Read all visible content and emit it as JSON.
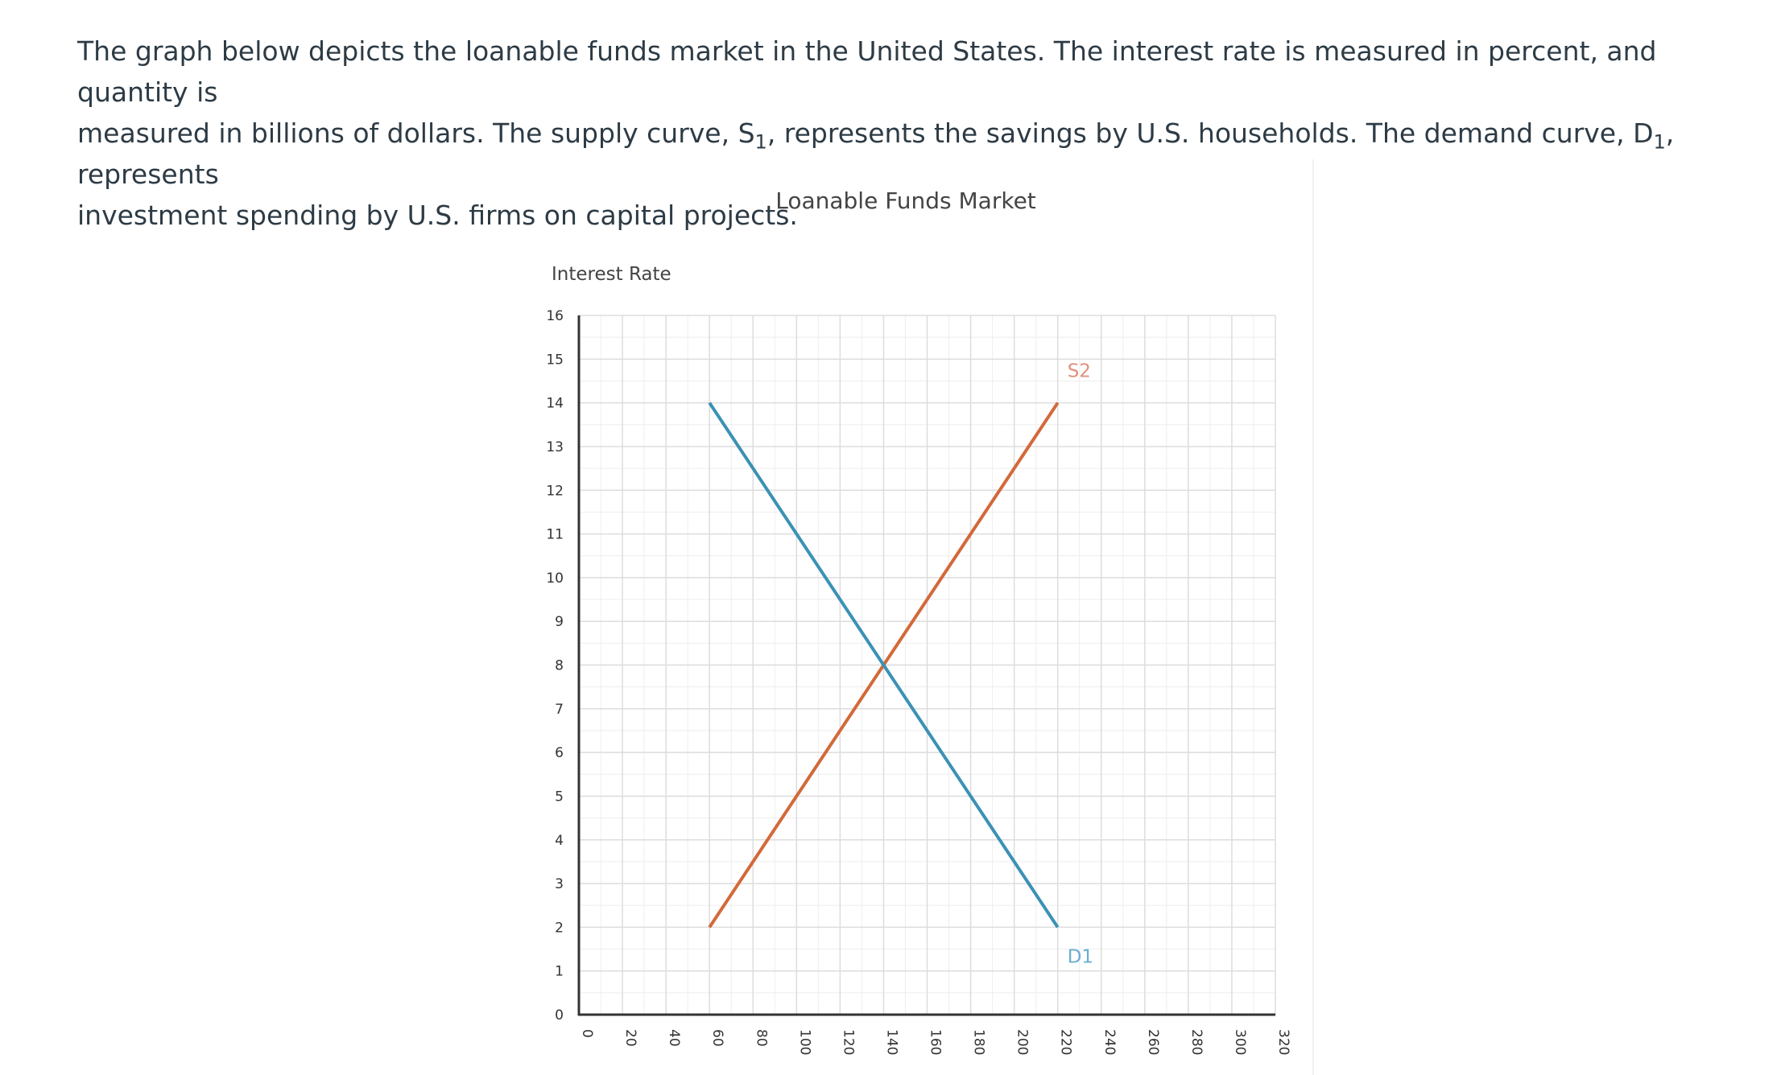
{
  "question": {
    "line1": "The graph below depicts the loanable funds market in the United States. The interest rate is measured in percent, and quantity is",
    "line2a": "measured in billions of dollars. The supply curve, S",
    "line2b": "1",
    "line2c": ", represents the savings by U.S. households. The demand curve, D",
    "line2d": "1",
    "line2e": ", represents",
    "line3": "investment spending by U.S. firms on capital projects."
  },
  "chart_data": {
    "type": "line",
    "title": "Loanable Funds Market",
    "ylabel": "Interest Rate",
    "xlabel": "",
    "xlim": [
      0,
      320
    ],
    "ylim": [
      0,
      16
    ],
    "x_ticks": [
      0,
      20,
      40,
      60,
      80,
      100,
      120,
      140,
      160,
      180,
      200,
      220,
      240,
      260,
      280,
      300,
      320
    ],
    "y_ticks": [
      0,
      1,
      2,
      3,
      4,
      5,
      6,
      7,
      8,
      9,
      10,
      11,
      12,
      13,
      14,
      15,
      16
    ],
    "x_minor_step": 10,
    "y_minor_step": 0.5,
    "grid": true,
    "series": [
      {
        "name": "S2",
        "color": "#d2693a",
        "label_color": "#e0917a",
        "points": [
          [
            60,
            2
          ],
          [
            220,
            14
          ]
        ]
      },
      {
        "name": "D1",
        "color": "#3a92b4",
        "label_color": "#6aaed0",
        "points": [
          [
            60,
            14
          ],
          [
            220,
            2
          ]
        ]
      }
    ]
  }
}
